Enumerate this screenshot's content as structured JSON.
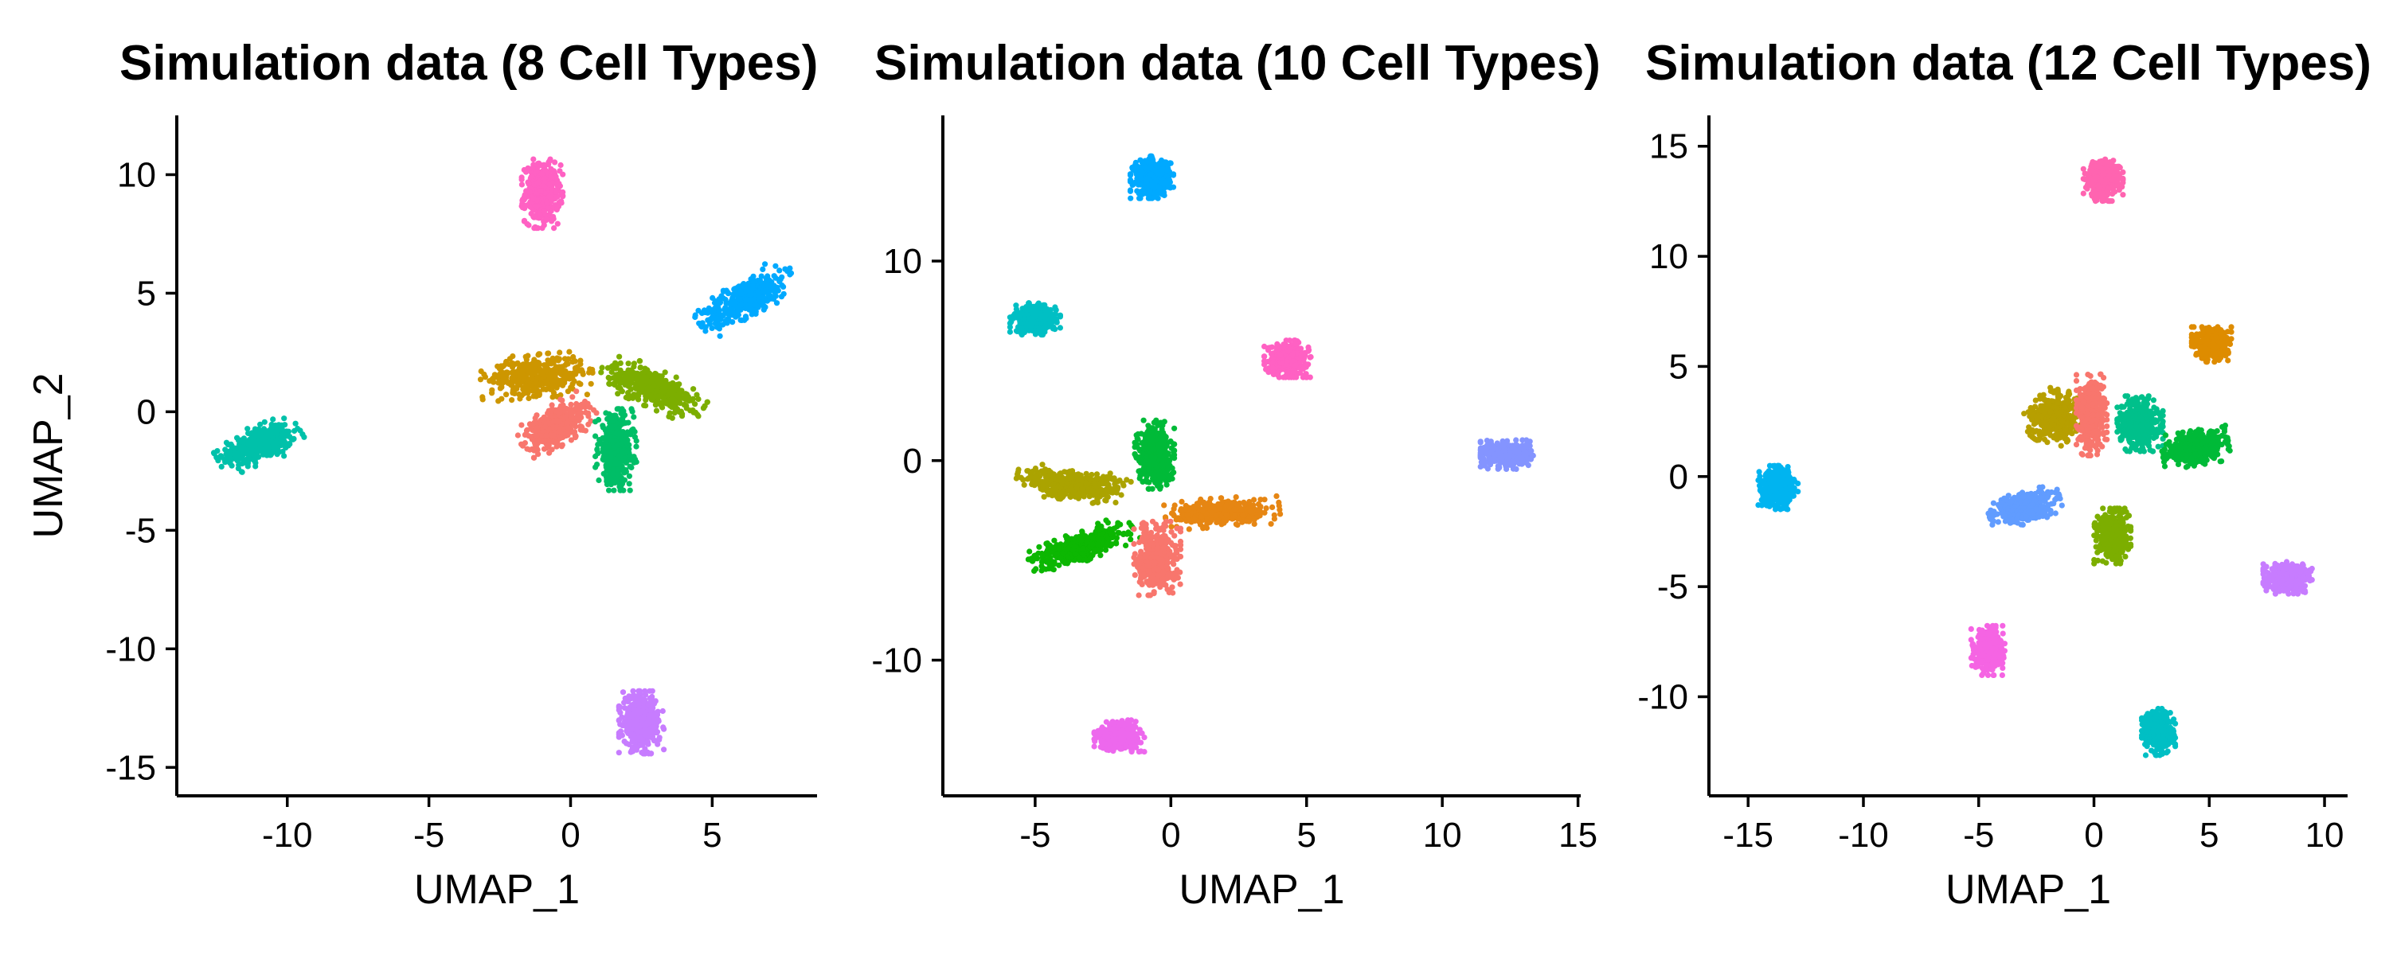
{
  "chart_data": [
    {
      "type": "scatter",
      "title": "Simulation data (8 Cell Types)",
      "xlabel": "UMAP_1",
      "ylabel": "UMAP_2",
      "xlim": [
        -13.9,
        8.7
      ],
      "ylim": [
        -16.2,
        12.5
      ],
      "xticks": [
        -10,
        -5,
        0,
        5
      ],
      "yticks": [
        -15,
        -10,
        -5,
        0,
        5,
        10
      ],
      "grid": false,
      "legend": "none",
      "clusters": [
        {
          "color": "#00C1AA",
          "center": [
            -11,
            -1.4
          ],
          "spread": [
            1.2,
            0.6
          ],
          "angle": 25
        },
        {
          "color": "#FF61C3",
          "center": [
            -1,
            9.2
          ],
          "spread": [
            0.55,
            1.1
          ],
          "angle": 0
        },
        {
          "color": "#00A9FF",
          "center": [
            6.2,
            4.8
          ],
          "spread": [
            1.5,
            0.6
          ],
          "angle": 35
        },
        {
          "color": "#CD9600",
          "center": [
            -1.2,
            1.5
          ],
          "spread": [
            1.5,
            0.7
          ],
          "angle": 5
        },
        {
          "color": "#7CAE00",
          "center": [
            2.9,
            1.0
          ],
          "spread": [
            1.5,
            0.6
          ],
          "angle": -28
        },
        {
          "color": "#F8766D",
          "center": [
            -0.5,
            -0.6
          ],
          "spread": [
            1.1,
            0.6
          ],
          "angle": 38
        },
        {
          "color": "#00BE67",
          "center": [
            1.6,
            -1.6
          ],
          "spread": [
            0.55,
            1.3
          ],
          "angle": 0
        },
        {
          "color": "#C77CFF",
          "center": [
            2.5,
            -13.1
          ],
          "spread": [
            0.6,
            1.0
          ],
          "angle": 0
        }
      ]
    },
    {
      "type": "scatter",
      "title": "Simulation data (10 Cell Types)",
      "xlabel": "UMAP_1",
      "ylabel": "",
      "xlim": [
        -8.4,
        15.1
      ],
      "ylim": [
        -16.8,
        17.3
      ],
      "xticks": [
        -5,
        0,
        5,
        10,
        15
      ],
      "yticks": [
        -10,
        0,
        10
      ],
      "grid": false,
      "legend": "none",
      "clusters": [
        {
          "color": "#00A9FF",
          "center": [
            -0.7,
            14.2
          ],
          "spread": [
            0.6,
            0.8
          ],
          "angle": 0
        },
        {
          "color": "#00BFC4",
          "center": [
            -5,
            7.1
          ],
          "spread": [
            0.7,
            0.6
          ],
          "angle": 0
        },
        {
          "color": "#FF61C3",
          "center": [
            4.3,
            5.1
          ],
          "spread": [
            0.65,
            0.7
          ],
          "angle": 0
        },
        {
          "color": "#8494FF",
          "center": [
            12.4,
            0.3
          ],
          "spread": [
            0.75,
            0.55
          ],
          "angle": 0
        },
        {
          "color": "#00BA38",
          "center": [
            -0.6,
            0.3
          ],
          "spread": [
            0.55,
            1.3
          ],
          "angle": 0
        },
        {
          "color": "#ABA300",
          "center": [
            -3.6,
            -1.2
          ],
          "spread": [
            1.6,
            0.6
          ],
          "angle": -10
        },
        {
          "color": "#E68613",
          "center": [
            1.9,
            -2.6
          ],
          "spread": [
            1.6,
            0.55
          ],
          "angle": 5
        },
        {
          "color": "#0CB702",
          "center": [
            -3.3,
            -4.3
          ],
          "spread": [
            1.6,
            0.55
          ],
          "angle": 28
        },
        {
          "color": "#F8766D",
          "center": [
            -0.5,
            -4.9
          ],
          "spread": [
            0.65,
            1.4
          ],
          "angle": 0
        },
        {
          "color": "#ED68ED",
          "center": [
            -1.9,
            -13.8
          ],
          "spread": [
            0.7,
            0.6
          ],
          "angle": 0
        }
      ]
    },
    {
      "type": "scatter",
      "title": "Simulation data (12 Cell Types)",
      "xlabel": "UMAP_1",
      "ylabel": "",
      "xlim": [
        -16.7,
        11
      ],
      "ylim": [
        -14.5,
        16.4
      ],
      "xticks": [
        -15,
        -10,
        -5,
        0,
        5,
        10
      ],
      "yticks": [
        -10,
        -5,
        0,
        5,
        10,
        15
      ],
      "grid": false,
      "legend": "none",
      "clusters": [
        {
          "color": "#FF64B0",
          "center": [
            0.4,
            13.5
          ],
          "spread": [
            0.65,
            0.75
          ],
          "angle": 0
        },
        {
          "color": "#DE8C00",
          "center": [
            5.1,
            6.0
          ],
          "spread": [
            0.65,
            0.6
          ],
          "angle": 0
        },
        {
          "color": "#00B4F0",
          "center": [
            -13.7,
            -0.5
          ],
          "spread": [
            0.65,
            0.75
          ],
          "angle": 0
        },
        {
          "color": "#B79F00",
          "center": [
            -1.7,
            2.7
          ],
          "spread": [
            0.85,
            1.0
          ],
          "angle": -40
        },
        {
          "color": "#F8766D",
          "center": [
            -0.1,
            2.8
          ],
          "spread": [
            0.5,
            1.4
          ],
          "angle": 0
        },
        {
          "color": "#00C08B",
          "center": [
            2.0,
            2.4
          ],
          "spread": [
            0.75,
            0.95
          ],
          "angle": 0
        },
        {
          "color": "#00BA38",
          "center": [
            4.4,
            1.3
          ],
          "spread": [
            1.1,
            0.6
          ],
          "angle": 10
        },
        {
          "color": "#619CFF",
          "center": [
            -3.0,
            -1.4
          ],
          "spread": [
            1.2,
            0.55
          ],
          "angle": 18
        },
        {
          "color": "#7CAE00",
          "center": [
            0.8,
            -2.7
          ],
          "spread": [
            0.6,
            0.95
          ],
          "angle": 0
        },
        {
          "color": "#C77CFF",
          "center": [
            8.4,
            -4.6
          ],
          "spread": [
            0.8,
            0.55
          ],
          "angle": 0
        },
        {
          "color": "#F564E3",
          "center": [
            -4.6,
            -7.9
          ],
          "spread": [
            0.55,
            0.85
          ],
          "angle": 0
        },
        {
          "color": "#00BFC4",
          "center": [
            2.8,
            -11.6
          ],
          "spread": [
            0.55,
            0.8
          ],
          "angle": 0
        }
      ]
    }
  ]
}
